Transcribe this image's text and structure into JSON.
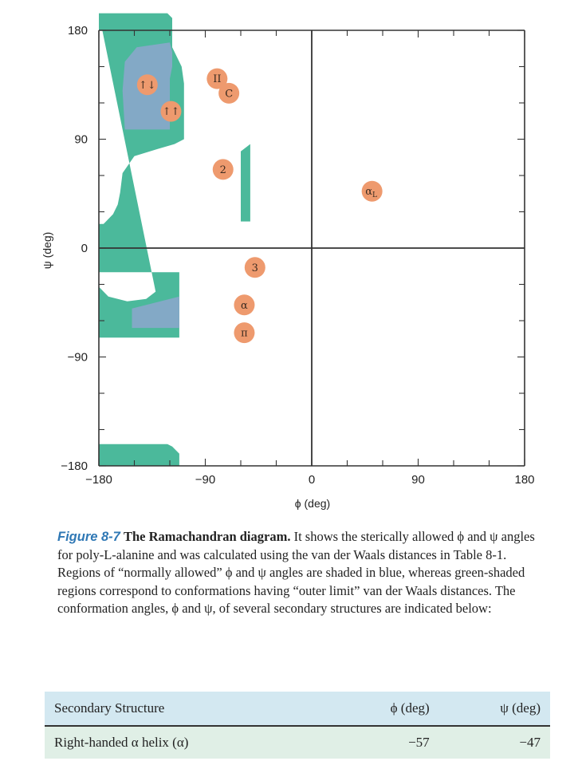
{
  "chart_data": {
    "type": "diagram",
    "xlabel": "ϕ (deg)",
    "ylabel": "ψ (deg)",
    "xlim": [
      -180,
      180
    ],
    "ylim": [
      -180,
      180
    ],
    "ticks_x": [
      -180,
      -90,
      0,
      90,
      180
    ],
    "ticks_y": [
      -180,
      -90,
      0,
      90,
      180
    ],
    "tick_labels_x": [
      "−180",
      "−90",
      "0",
      "90",
      "180"
    ],
    "tick_labels_y": [
      "−180",
      "−90",
      "0",
      "90",
      "180"
    ],
    "colors": {
      "outer_limit": "#4bb99b",
      "normally_allowed": "#83a9c6",
      "marker": "#ee9a6e",
      "axis": "#333333"
    },
    "regions": [
      {
        "kind": "outer_limit",
        "points": [
          [
            -180,
            194
          ],
          [
            -122,
            194
          ],
          [
            -118,
            190
          ],
          [
            -118,
            166
          ],
          [
            -114,
            158
          ],
          [
            -110,
            150
          ],
          [
            -108,
            136
          ],
          [
            -108,
            90
          ],
          [
            -116,
            86
          ],
          [
            -130,
            82
          ],
          [
            -150,
            76
          ],
          [
            -160,
            62
          ],
          [
            -162,
            46
          ],
          [
            -164,
            36
          ],
          [
            -168,
            28
          ],
          [
            -176,
            20
          ],
          [
            -180,
            20
          ],
          [
            -180,
            -20
          ],
          [
            -112,
            -20
          ],
          [
            -112,
            -74
          ],
          [
            -180,
            -74
          ],
          [
            -180,
            -32
          ],
          [
            -172,
            -40
          ],
          [
            -156,
            -44
          ],
          [
            -140,
            -42
          ],
          [
            -132,
            -36
          ]
        ]
      },
      {
        "kind": "outer_limit_top",
        "points": [
          [
            -180,
            180
          ],
          [
            -180,
            194
          ],
          [
            -122,
            194
          ],
          [
            -118,
            190
          ],
          [
            -118,
            180
          ]
        ]
      },
      {
        "kind": "normally_allowed",
        "points": [
          [
            -158,
            154
          ],
          [
            -148,
            166
          ],
          [
            -120,
            170
          ],
          [
            -118,
            162
          ],
          [
            -118,
            150
          ],
          [
            -120,
            140
          ],
          [
            -120,
            98
          ],
          [
            -158,
            98
          ],
          [
            -160,
            130
          ]
        ]
      },
      {
        "kind": "normally_allowed",
        "points": [
          [
            -152,
            -50
          ],
          [
            -112,
            -40
          ],
          [
            -112,
            -66
          ],
          [
            -152,
            -66
          ]
        ]
      },
      {
        "kind": "outer_limit",
        "points": [
          [
            -180,
            -162
          ],
          [
            -180,
            -180
          ],
          [
            -112,
            -180
          ],
          [
            -112,
            -170
          ],
          [
            -118,
            -164
          ],
          [
            -122,
            -162
          ]
        ]
      },
      {
        "kind": "outer_limit",
        "points": [
          [
            -60,
            80
          ],
          [
            -52,
            86
          ],
          [
            -52,
            22
          ],
          [
            -60,
            22
          ]
        ]
      }
    ],
    "markers": [
      {
        "label": "↑↓",
        "phi": -139,
        "psi": 135
      },
      {
        "label": "II",
        "phi": -80,
        "psi": 140
      },
      {
        "label": "C",
        "phi": -70,
        "psi": 128
      },
      {
        "label": "↑↑",
        "phi": -119,
        "psi": 113
      },
      {
        "label": "2",
        "phi": -75,
        "psi": 65
      },
      {
        "label": "αL",
        "phi": 51,
        "psi": 47
      },
      {
        "label": "3",
        "phi": -48,
        "psi": -16
      },
      {
        "label": "α",
        "phi": -57,
        "psi": -47
      },
      {
        "label": "π",
        "phi": -57,
        "psi": -70
      }
    ]
  },
  "caption": {
    "figure_label": "Figure 8-7",
    "title": "The Ramachandran diagram.",
    "text": " It shows the sterically allowed ϕ and ψ angles for poly-L-alanine and was calculated using the van der Waals distances in Table 8-1. Regions of “normally allowed” ϕ and ψ angles are shaded in blue, whereas green-shaded regions correspond to conformations having “outer limit” van der Waals distances. The conformation angles, ϕ and ψ, of several secondary structures are indicated below:"
  },
  "table": {
    "headers": [
      "Secondary Structure",
      "ϕ (deg)",
      "ψ (deg)"
    ],
    "rows": [
      [
        "Right-handed α helix (α)",
        "−57",
        "−47"
      ]
    ]
  }
}
